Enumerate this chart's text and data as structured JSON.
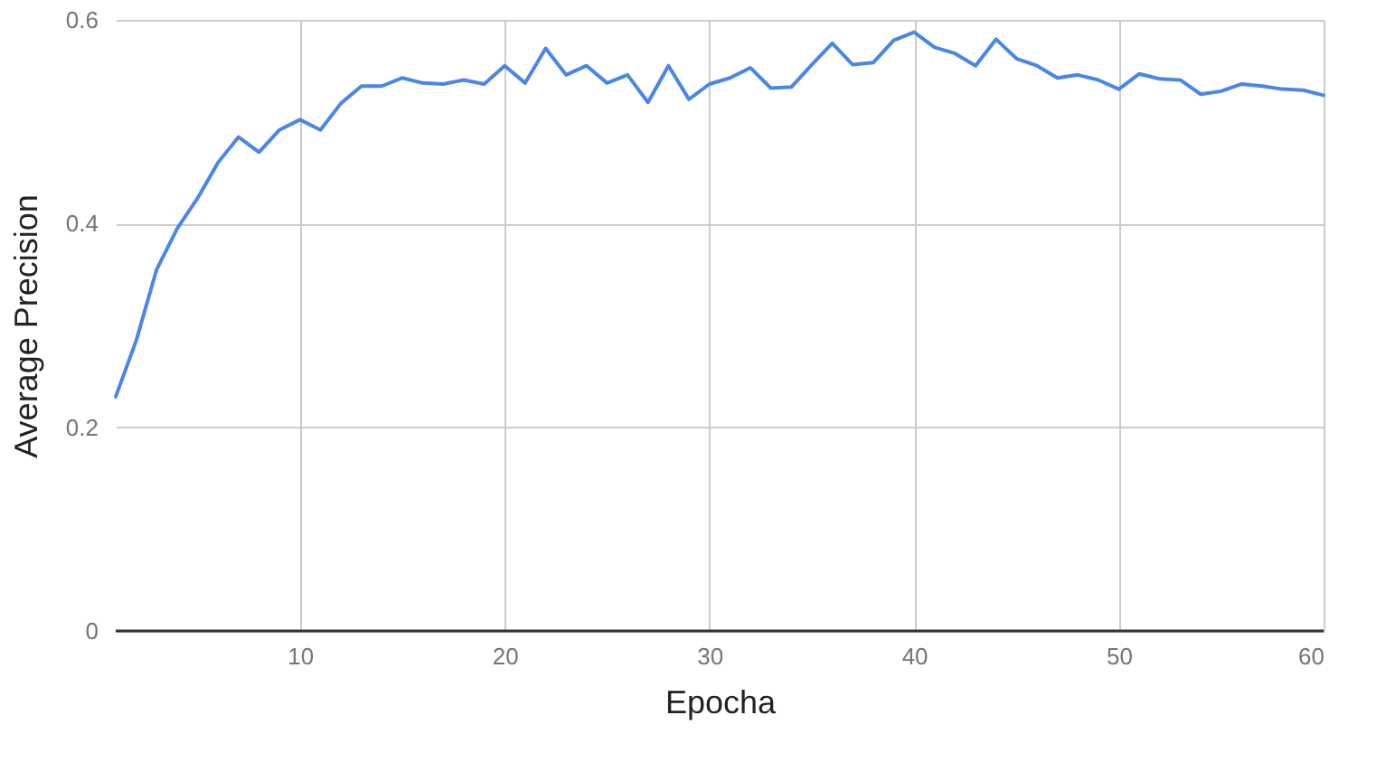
{
  "chart_data": {
    "type": "line",
    "xlabel": "Epocha",
    "ylabel": "Average Precision",
    "x": [
      1,
      2,
      3,
      4,
      5,
      6,
      7,
      8,
      9,
      10,
      11,
      12,
      13,
      14,
      15,
      16,
      17,
      18,
      19,
      20,
      21,
      22,
      23,
      24,
      25,
      26,
      27,
      28,
      29,
      30,
      31,
      32,
      33,
      34,
      35,
      36,
      37,
      38,
      39,
      40,
      41,
      42,
      43,
      44,
      45,
      46,
      47,
      48,
      49,
      50,
      51,
      52,
      53,
      54,
      55,
      56,
      57,
      58,
      59,
      60
    ],
    "series": [
      {
        "color": "#4a86e8",
        "values": [
          0.23,
          0.285,
          0.355,
          0.395,
          0.425,
          0.46,
          0.485,
          0.47,
          0.492,
          0.502,
          0.492,
          0.518,
          0.535,
          0.535,
          0.543,
          0.538,
          0.537,
          0.541,
          0.537,
          0.555,
          0.538,
          0.572,
          0.546,
          0.555,
          0.538,
          0.546,
          0.519,
          0.555,
          0.522,
          0.537,
          0.543,
          0.553,
          0.533,
          0.534,
          0.556,
          0.577,
          0.556,
          0.558,
          0.58,
          0.588,
          0.573,
          0.567,
          0.555,
          0.581,
          0.562,
          0.555,
          0.543,
          0.546,
          0.541,
          0.532,
          0.547,
          0.542,
          0.541,
          0.527,
          0.53,
          0.537,
          0.535,
          0.532,
          0.531,
          0.526
        ]
      }
    ],
    "xlim": [
      1,
      60
    ],
    "xticks": [
      10,
      20,
      30,
      40,
      50,
      60
    ],
    "ylim": [
      0,
      0.6
    ],
    "yticks": [
      0,
      0.2,
      0.4,
      0.6
    ],
    "grid": true,
    "legend": false,
    "marker": "none",
    "line_style": "solid"
  }
}
